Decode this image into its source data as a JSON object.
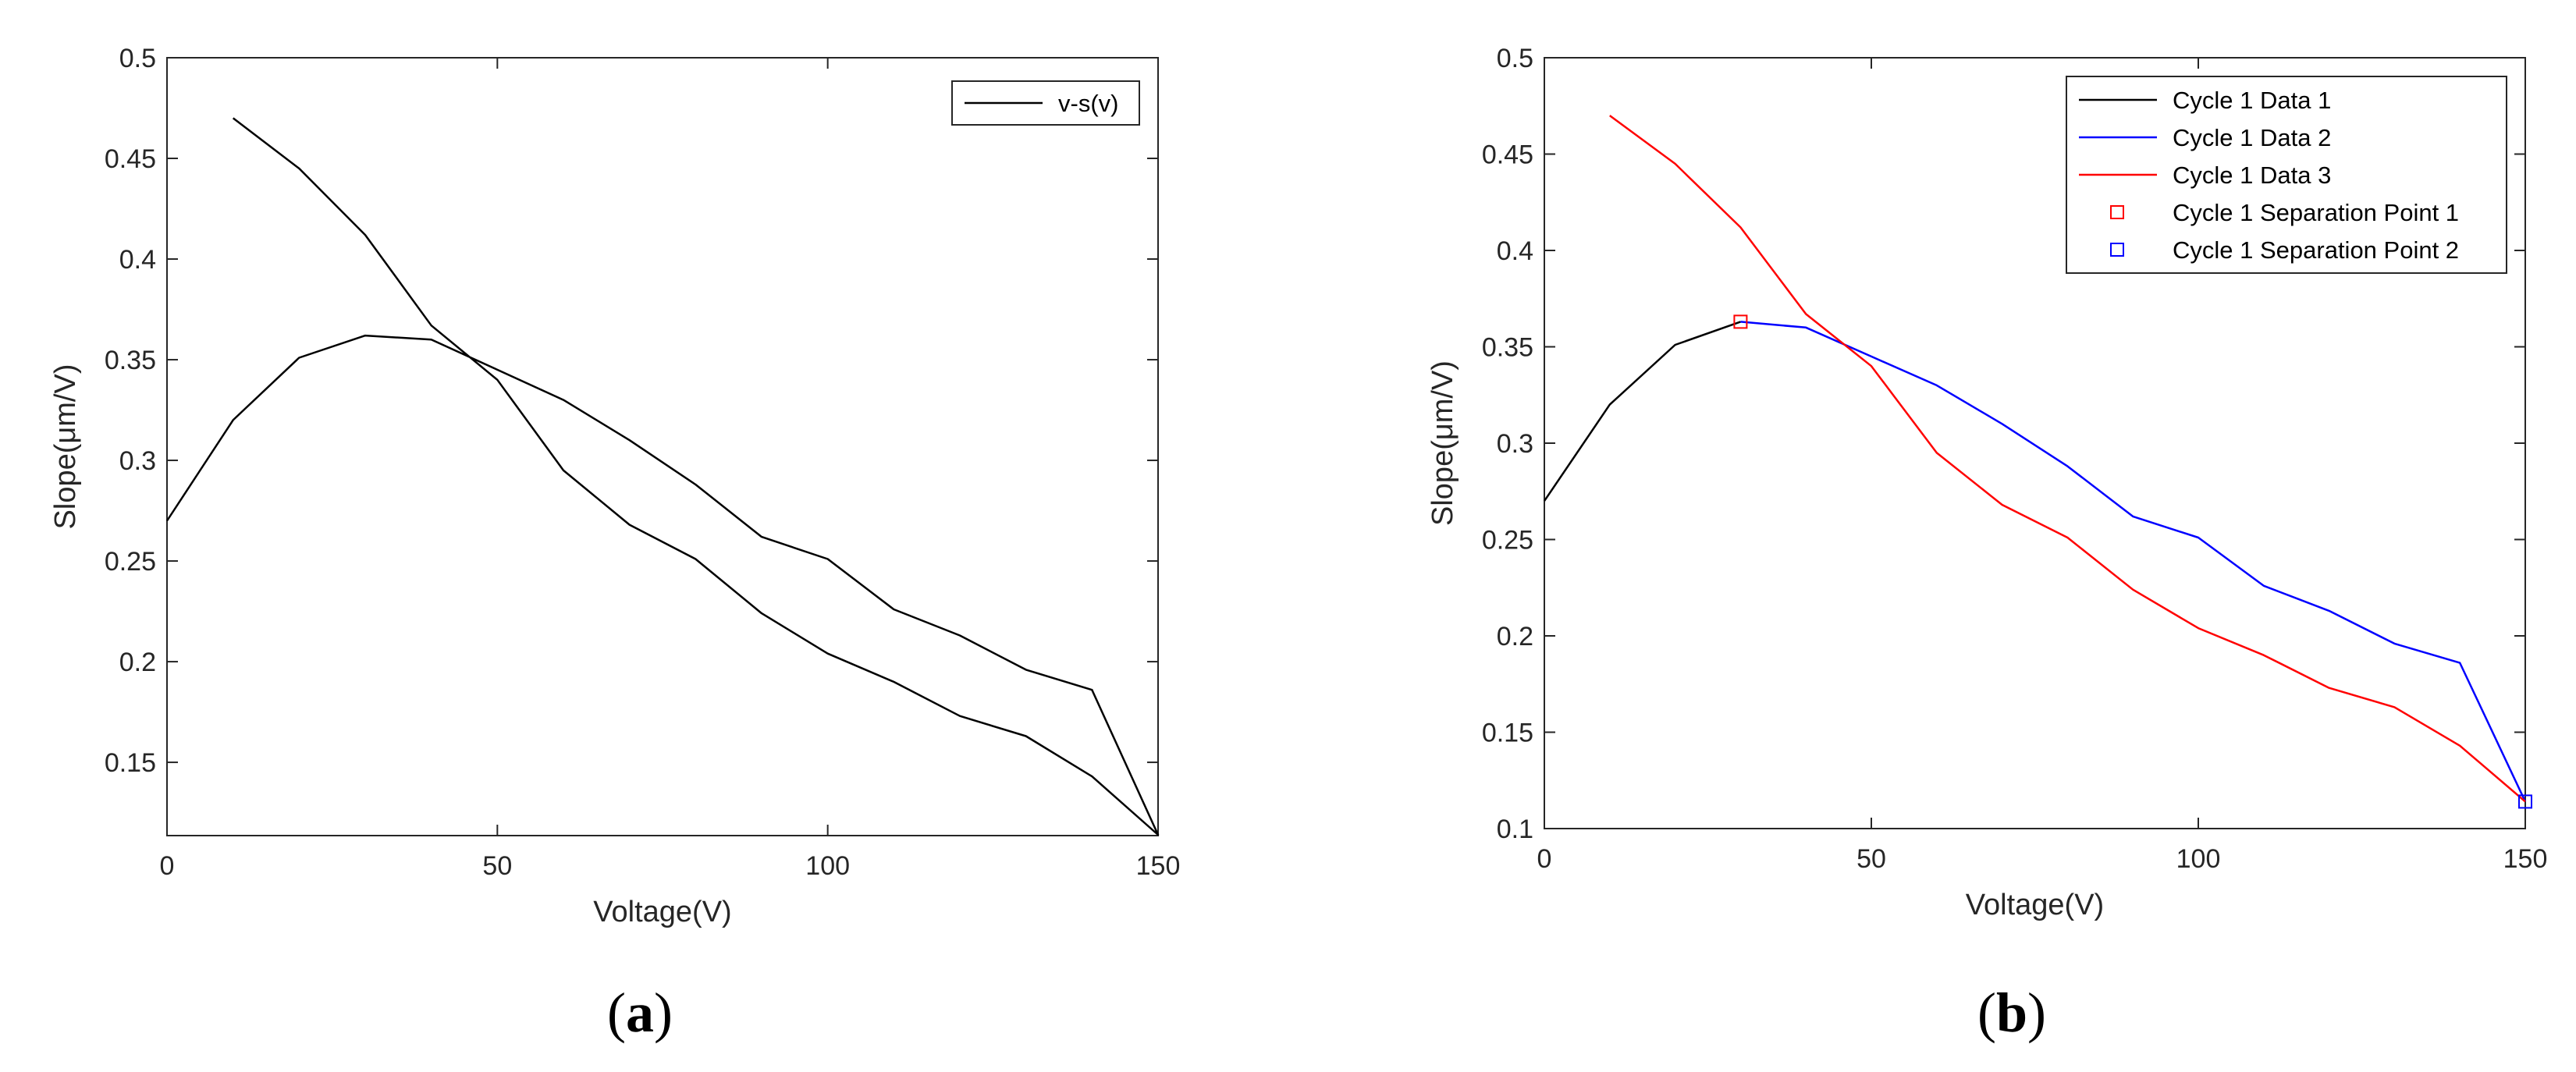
{
  "chart_data": [
    {
      "type": "line",
      "xlabel": "Voltage(V)",
      "ylabel": "Slope(μm/V)",
      "xlim": [
        0,
        150
      ],
      "ylim": [
        0.1136,
        0.5
      ],
      "xticks": [
        0,
        50,
        100,
        150
      ],
      "xtick_labels": [
        "0",
        "50",
        "100",
        "150"
      ],
      "yticks": [
        0.15,
        0.2,
        0.25,
        0.3,
        0.35,
        0.4,
        0.45,
        0.5
      ],
      "ytick_labels": [
        "0.15",
        "0.2",
        "0.25",
        "0.3",
        "0.35",
        "0.4",
        "0.45",
        "0.5"
      ],
      "grid": false,
      "legend_position": "top-right",
      "panel_label": "a",
      "series": [
        {
          "name": "v-s(v)",
          "color": "#000000",
          "x": [
            0,
            10,
            20,
            30,
            40,
            50,
            60,
            70,
            80,
            90,
            100,
            110,
            120,
            130,
            140,
            150,
            140,
            130,
            120,
            110,
            100,
            90,
            80,
            70,
            60,
            50,
            40,
            30,
            20,
            10
          ],
          "y": [
            0.27,
            0.32,
            0.351,
            0.362,
            0.36,
            0.345,
            0.33,
            0.31,
            0.288,
            0.262,
            0.251,
            0.226,
            0.213,
            0.196,
            0.186,
            0.114,
            0.143,
            0.163,
            0.173,
            0.19,
            0.204,
            0.224,
            0.251,
            0.268,
            0.295,
            0.34,
            0.367,
            0.412,
            0.445,
            0.47
          ]
        }
      ]
    },
    {
      "type": "line",
      "xlabel": "Voltage(V)",
      "ylabel": "Slope(μm/V)",
      "xlim": [
        0,
        150
      ],
      "ylim": [
        0.1,
        0.5
      ],
      "xticks": [
        0,
        50,
        100,
        150
      ],
      "xtick_labels": [
        "0",
        "50",
        "100",
        "150"
      ],
      "yticks": [
        0.1,
        0.15,
        0.2,
        0.25,
        0.3,
        0.35,
        0.4,
        0.45,
        0.5
      ],
      "ytick_labels": [
        "0.1",
        "0.15",
        "0.2",
        "0.25",
        "0.3",
        "0.35",
        "0.4",
        "0.45",
        "0.5"
      ],
      "grid": false,
      "legend_position": "top-right",
      "panel_label": "b",
      "series": [
        {
          "name": "Cycle 1 Data 1",
          "color": "#000000",
          "marker": "none",
          "x": [
            0,
            10,
            20,
            30
          ],
          "y": [
            0.27,
            0.32,
            0.351,
            0.363
          ]
        },
        {
          "name": "Cycle 1 Data 2",
          "color": "#0000ff",
          "marker": "none",
          "x": [
            30,
            40,
            50,
            60,
            70,
            80,
            90,
            100,
            110,
            120,
            130,
            140,
            150
          ],
          "y": [
            0.363,
            0.36,
            0.345,
            0.33,
            0.31,
            0.288,
            0.262,
            0.251,
            0.226,
            0.213,
            0.196,
            0.186,
            0.114
          ]
        },
        {
          "name": "Cycle 1 Data 3",
          "color": "#ff0000",
          "marker": "none",
          "x": [
            150,
            140,
            130,
            120,
            110,
            100,
            90,
            80,
            70,
            60,
            50,
            40,
            30,
            20,
            10
          ],
          "y": [
            0.114,
            0.143,
            0.163,
            0.173,
            0.19,
            0.204,
            0.224,
            0.251,
            0.268,
            0.295,
            0.34,
            0.367,
            0.412,
            0.445,
            0.47
          ]
        },
        {
          "name": "Cycle 1 Separation Point 1",
          "color": "#ff0000",
          "marker": "square",
          "x": [
            30
          ],
          "y": [
            0.363
          ]
        },
        {
          "name": "Cycle 1 Separation Point 2",
          "color": "#0000ff",
          "marker": "square",
          "x": [
            150
          ],
          "y": [
            0.114
          ]
        }
      ]
    }
  ]
}
